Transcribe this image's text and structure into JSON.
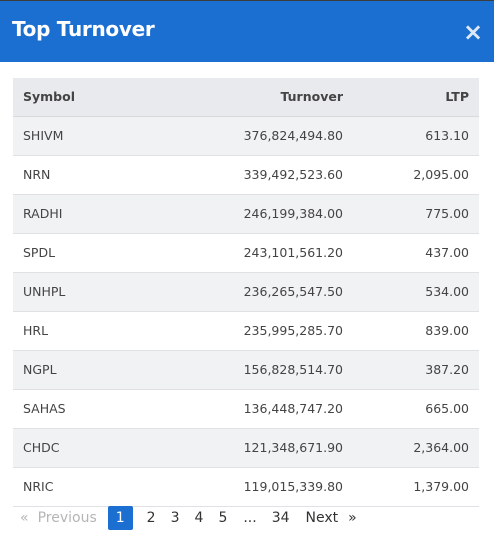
{
  "modal": {
    "title": "Top Turnover",
    "close_symbol": "×"
  },
  "table": {
    "headers": {
      "symbol": "Symbol",
      "turnover": "Turnover",
      "ltp": "LTP"
    },
    "rows": [
      {
        "symbol": "SHIVM",
        "turnover": "376,824,494.80",
        "ltp": "613.10"
      },
      {
        "symbol": "NRN",
        "turnover": "339,492,523.60",
        "ltp": "2,095.00"
      },
      {
        "symbol": "RADHI",
        "turnover": "246,199,384.00",
        "ltp": "775.00"
      },
      {
        "symbol": "SPDL",
        "turnover": "243,101,561.20",
        "ltp": "437.00"
      },
      {
        "symbol": "UNHPL",
        "turnover": "236,265,547.50",
        "ltp": "534.00"
      },
      {
        "symbol": "HRL",
        "turnover": "235,995,285.70",
        "ltp": "839.00"
      },
      {
        "symbol": "NGPL",
        "turnover": "156,828,514.70",
        "ltp": "387.20"
      },
      {
        "symbol": "SAHAS",
        "turnover": "136,448,747.20",
        "ltp": "665.00"
      },
      {
        "symbol": "CHDC",
        "turnover": "121,348,671.90",
        "ltp": "2,364.00"
      },
      {
        "symbol": "NRIC",
        "turnover": "119,015,339.80",
        "ltp": "1,379.00"
      }
    ]
  },
  "pagination": {
    "prev_arrow": "«",
    "prev_label": "Previous",
    "pages": [
      "1",
      "2",
      "3",
      "4",
      "5"
    ],
    "ellipsis": "...",
    "last_page": "34",
    "next_label": "Next",
    "next_arrow": "»",
    "current_page": "1"
  },
  "colors": {
    "header_bg": "#1b6fd1",
    "active_page_bg": "#1b6fd1"
  }
}
